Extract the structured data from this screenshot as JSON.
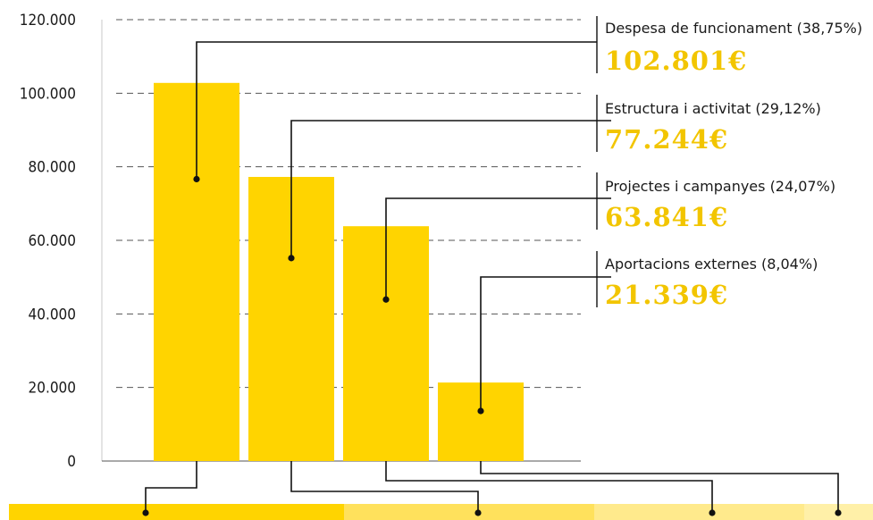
{
  "chart_data": {
    "type": "bar",
    "title": "",
    "xlabel": "",
    "ylabel": "",
    "ylim": [
      0,
      120000
    ],
    "y_ticks": [
      0,
      20000,
      40000,
      60000,
      80000,
      100000,
      120000
    ],
    "y_tick_labels": [
      "0",
      "20.000",
      "40.000",
      "60.000",
      "80.000",
      "100.000",
      "120.000"
    ],
    "grid": "horizontal dashed",
    "categories": [
      "Despesa de funcionament (38,75%)",
      "Estructura i activitat (29,12%)",
      "Projectes i campanyes (24,07%)",
      "Aportacions externes (8,04%)"
    ],
    "values": [
      102801,
      77244,
      63841,
      21339
    ],
    "value_labels": [
      "102.801€",
      "77.244€",
      "63.841€",
      "21.339€"
    ],
    "shares": [
      38.75,
      29.12,
      24.07,
      8.04
    ],
    "legend": "right",
    "colors": {
      "bar": "#FFD400",
      "value_text": "#F2C500",
      "strip": [
        "#FFD400",
        "#FFE15C",
        "#FFEA8C",
        "#FFF0A8"
      ],
      "grid": "#555555",
      "line": "#111111"
    }
  }
}
